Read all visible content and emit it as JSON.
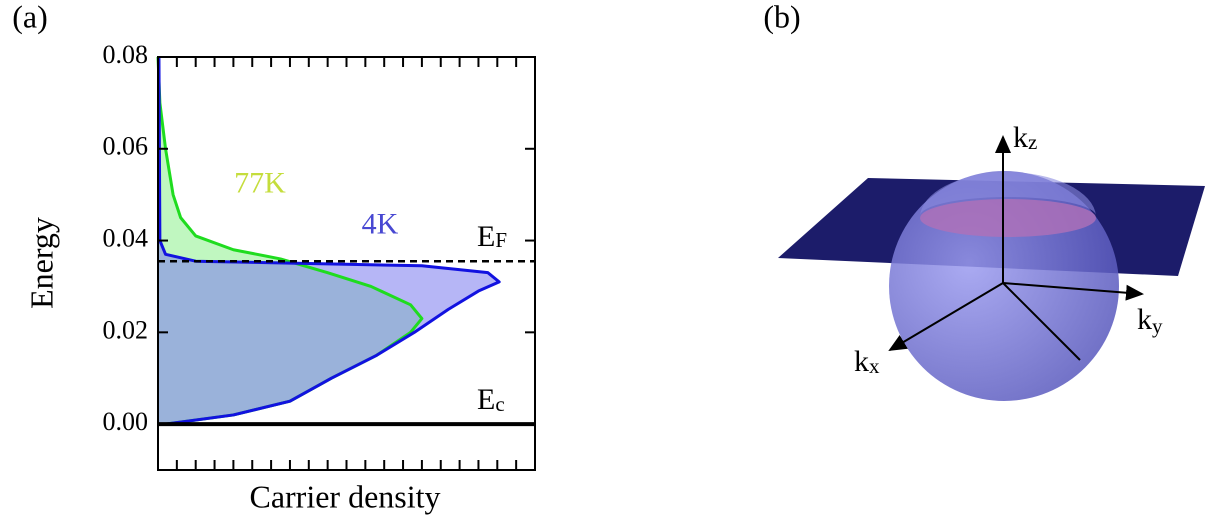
{
  "chart_data": {
    "type": "line",
    "panel_label": "(a)",
    "ylabel": "Energy",
    "xlabel": "Carrier density",
    "xlim": [
      0,
      20
    ],
    "xticks": [
      1,
      2,
      3,
      4,
      5,
      6,
      7,
      8,
      9,
      10,
      11,
      12,
      13,
      14,
      15,
      16,
      17,
      18,
      19
    ],
    "ylim": [
      -0.01,
      0.08
    ],
    "yticks": [
      {
        "value": 0,
        "label": "0.00"
      },
      {
        "value": 0.02,
        "label": "0.02"
      },
      {
        "value": 0.04,
        "label": "0.04"
      },
      {
        "value": 0.06,
        "label": "0.06"
      },
      {
        "value": 0.08,
        "label": "0.08"
      }
    ],
    "fermi_level": 0.0355,
    "fermi_label": {
      "main": "E",
      "sub": "F"
    },
    "conduction_band_edge": 0,
    "conduction_label": {
      "main": "E",
      "sub": "c"
    },
    "series": [
      {
        "name": "77K",
        "color": "#1fdc1f",
        "fill": "#8cf08c",
        "label_color": "#c5dd3c",
        "x": [
          0.4,
          4,
          7,
          9.2,
          11.6,
          13.4,
          14,
          13.4,
          11.3,
          9,
          6.5,
          4,
          2,
          1.2,
          0.8,
          0.4,
          0.1,
          0
        ],
        "values": [
          0,
          0.002,
          0.005,
          0.01,
          0.015,
          0.02,
          0.023,
          0.026,
          0.03,
          0.033,
          0.036,
          0.038,
          0.041,
          0.045,
          0.05,
          0.06,
          0.07,
          0.08
        ]
      },
      {
        "name": "4K",
        "color": "#1212e0",
        "fill": "#7a7aee",
        "label_color": "#4848d2",
        "x": [
          0.4,
          4,
          7,
          9.2,
          11.6,
          13.6,
          15.4,
          17,
          18.1,
          17.5,
          14,
          8,
          2,
          0.4,
          0.1,
          0.05
        ],
        "values": [
          0,
          0.002,
          0.005,
          0.01,
          0.015,
          0.02,
          0.025,
          0.029,
          0.031,
          0.033,
          0.0345,
          0.035,
          0.0355,
          0.037,
          0.04,
          0.08
        ]
      }
    ]
  },
  "diagram": {
    "panel_label": "(b)",
    "axes": [
      {
        "main": "k",
        "sub": "z"
      },
      {
        "main": "k",
        "sub": "y"
      },
      {
        "main": "k",
        "sub": "x"
      }
    ]
  }
}
